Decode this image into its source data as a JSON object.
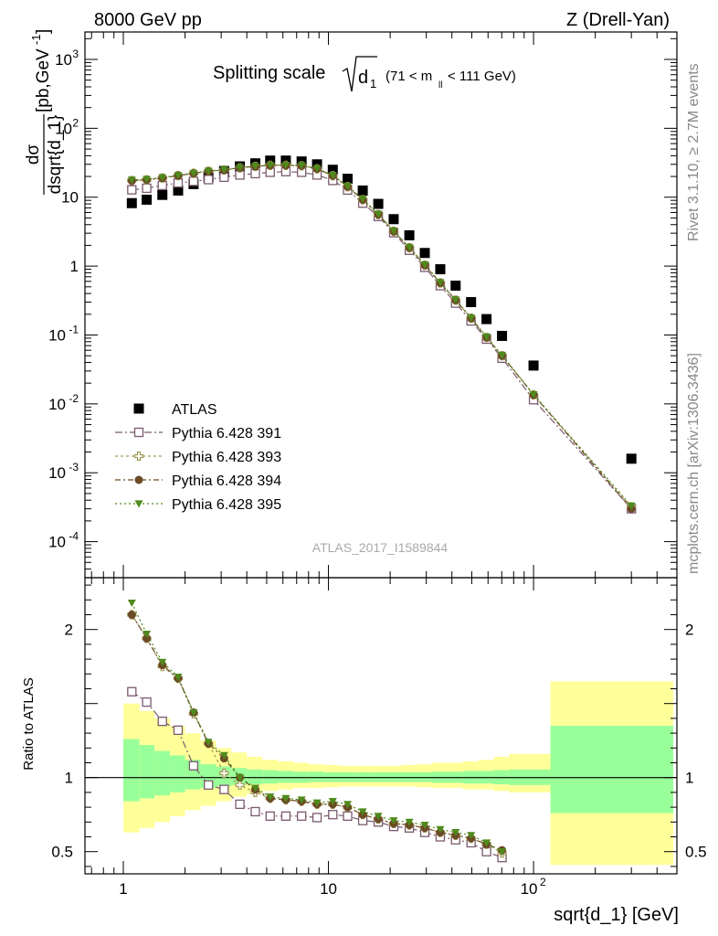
{
  "header": {
    "left": "8000 GeV pp",
    "right": "Z (Drell-Yan)"
  },
  "side_labels": {
    "rivet": "Rivet 3.1.10, ≥ 2.7M events",
    "mcplots": "mcplots.cern.ch [arXiv:1306.3436]"
  },
  "plot_title": {
    "main": "Splitting scale",
    "root_symbol": "d",
    "root_sub": "1",
    "range_a": "(71 < m",
    "range_sub": "ll",
    "range_b": " < 111 GeV)"
  },
  "analysis_id": "ATLAS_2017_I1589844",
  "y_label_top": {
    "num": "dσ",
    "den": "dsqrt{d_1}",
    "unit": "[pb,GeV",
    "unit_sup": "-1",
    "unit_close": "]"
  },
  "y_label_bottom": "Ratio to ATLAS",
  "x_label": "sqrt{d_1} [GeV]",
  "colors": {
    "data": "#000000",
    "p391": "#7a5a6e",
    "p393": "#a39a57",
    "p394": "#6b4a25",
    "p395": "#4f8a1c",
    "band_inner": "#99ff99",
    "band_outer": "#ffff99"
  },
  "chart_data": [
    {
      "type": "scatter",
      "panel": "main",
      "xscale": "log",
      "yscale": "log",
      "xlim": [
        0.65,
        500
      ],
      "ylim": [
        3e-05,
        2500
      ],
      "x_ticks": [
        "1",
        "10",
        "10^2"
      ],
      "y_ticks": [
        "10^-4",
        "10^-3",
        "10^-2",
        "10^-1",
        "1",
        "10",
        "10^2",
        "10^3"
      ],
      "x": [
        1.1,
        1.3,
        1.55,
        1.85,
        2.2,
        2.6,
        3.1,
        3.7,
        4.4,
        5.2,
        6.2,
        7.4,
        8.8,
        10.5,
        12.4,
        14.7,
        17.5,
        20.8,
        24.8,
        29.5,
        35.1,
        41.7,
        49.6,
        59,
        70.2,
        100,
        300
      ],
      "series": [
        {
          "name": "ATLAS",
          "marker": "square-filled",
          "values": [
            8.2,
            9.2,
            10.8,
            12.5,
            15.5,
            19.5,
            24,
            28,
            31,
            34,
            34,
            33,
            30,
            25,
            18.5,
            12.5,
            8,
            4.8,
            2.8,
            1.55,
            0.9,
            0.52,
            0.3,
            0.17,
            0.097,
            0.036,
            0.0016
          ]
        },
        {
          "name": "Pythia 6.428 391",
          "marker": "square-open",
          "values": [
            12.8,
            13.5,
            14.8,
            16.1,
            17,
            18,
            19.5,
            21,
            22,
            23,
            23.5,
            23,
            21,
            17.5,
            12.7,
            8.2,
            5.25,
            3.05,
            1.7,
            0.96,
            0.52,
            0.29,
            0.16,
            0.087,
            0.046,
            0.0115,
            0.0003
          ]
        },
        {
          "name": "Pythia 6.428 393",
          "marker": "cross-open",
          "values": [
            17.5,
            17.9,
            19,
            20.6,
            22.2,
            23.8,
            24.8,
            26.7,
            28,
            29,
            29,
            28.6,
            25.8,
            20.5,
            14.2,
            9.2,
            5.6,
            3.2,
            1.85,
            1.03,
            0.57,
            0.32,
            0.175,
            0.092,
            0.05,
            0.0135,
            0.00032
          ]
        },
        {
          "name": "Pythia 6.428 394",
          "marker": "circle-filled",
          "values": [
            17.3,
            17.9,
            19,
            20.6,
            22.2,
            23.8,
            24.8,
            26.7,
            28,
            29,
            29,
            28.6,
            25.8,
            20.5,
            14.2,
            9.2,
            5.6,
            3.2,
            1.85,
            1.03,
            0.57,
            0.32,
            0.175,
            0.092,
            0.05,
            0.0135,
            0.0003
          ]
        },
        {
          "name": "Pythia 6.428 395",
          "marker": "triangle-down-filled",
          "values": [
            17.8,
            18.2,
            19.3,
            20.8,
            22.4,
            24.1,
            25,
            27,
            28.3,
            29.3,
            29.3,
            29,
            26.2,
            20.8,
            14.5,
            9.4,
            5.7,
            3.25,
            1.88,
            1.05,
            0.58,
            0.325,
            0.178,
            0.094,
            0.051,
            0.0137,
            0.00033
          ]
        }
      ]
    },
    {
      "type": "scatter",
      "panel": "ratio",
      "xscale": "log",
      "xlim": [
        0.65,
        500
      ],
      "ylim": [
        0.35,
        2.35
      ],
      "y_ticks": [
        "0.5",
        "1",
        "2"
      ],
      "reference": 1,
      "band_x_edges": [
        1.0,
        1.2,
        1.42,
        1.69,
        2.0,
        2.38,
        2.83,
        3.36,
        4.0,
        4.76,
        5.66,
        6.73,
        8.0,
        9.51,
        11.3,
        13.5,
        16.0,
        19.0,
        22.6,
        26.9,
        32.0,
        38.1,
        45.3,
        53.8,
        64.0,
        76.1,
        121.0,
        480.0
      ],
      "band_inner_lo": [
        0.84,
        0.86,
        0.88,
        0.9,
        0.92,
        0.93,
        0.94,
        0.95,
        0.955,
        0.96,
        0.965,
        0.965,
        0.97,
        0.97,
        0.97,
        0.97,
        0.97,
        0.97,
        0.97,
        0.97,
        0.965,
        0.965,
        0.96,
        0.96,
        0.955,
        0.95,
        0.76
      ],
      "band_inner_hi": [
        1.26,
        1.22,
        1.18,
        1.15,
        1.12,
        1.09,
        1.075,
        1.065,
        1.055,
        1.05,
        1.045,
        1.04,
        1.04,
        1.035,
        1.035,
        1.035,
        1.035,
        1.035,
        1.035,
        1.035,
        1.04,
        1.04,
        1.045,
        1.045,
        1.05,
        1.055,
        1.35
      ],
      "band_outer_lo": [
        0.63,
        0.66,
        0.7,
        0.74,
        0.78,
        0.81,
        0.84,
        0.87,
        0.89,
        0.91,
        0.92,
        0.93,
        0.93,
        0.935,
        0.94,
        0.94,
        0.94,
        0.94,
        0.94,
        0.935,
        0.93,
        0.93,
        0.92,
        0.92,
        0.91,
        0.9,
        0.41
      ],
      "band_outer_hi": [
        1.5,
        1.45,
        1.4,
        1.35,
        1.3,
        1.25,
        1.2,
        1.17,
        1.14,
        1.12,
        1.11,
        1.1,
        1.09,
        1.085,
        1.08,
        1.08,
        1.08,
        1.08,
        1.085,
        1.09,
        1.1,
        1.1,
        1.11,
        1.12,
        1.14,
        1.16,
        1.65
      ],
      "x": [
        1.1,
        1.3,
        1.55,
        1.85,
        2.2,
        2.6,
        3.1,
        3.7,
        4.4,
        5.2,
        6.2,
        7.4,
        8.8,
        10.5,
        12.4,
        14.7,
        17.5,
        20.8,
        24.8,
        29.5,
        35.1,
        41.7,
        49.6,
        59,
        70.2
      ],
      "series": [
        {
          "name": "Pythia 6.428 391",
          "values": [
            1.58,
            1.51,
            1.38,
            1.32,
            1.08,
            0.95,
            0.92,
            0.82,
            0.77,
            0.74,
            0.74,
            0.74,
            0.73,
            0.75,
            0.74,
            0.71,
            0.7,
            0.67,
            0.66,
            0.63,
            0.6,
            0.58,
            0.56,
            0.5,
            0.46
          ]
        },
        {
          "name": "Pythia 6.428 393",
          "values": [
            2.1,
            1.94,
            1.75,
            1.67,
            1.43,
            1.23,
            1.03,
            0.95,
            0.9,
            0.86,
            0.85,
            0.84,
            0.82,
            0.82,
            0.8,
            0.75,
            0.72,
            0.69,
            0.68,
            0.66,
            0.63,
            0.61,
            0.59,
            0.55,
            0.49
          ]
        },
        {
          "name": "Pythia 6.428 394",
          "values": [
            2.1,
            1.94,
            1.76,
            1.67,
            1.44,
            1.23,
            1.13,
            1.0,
            0.92,
            0.86,
            0.85,
            0.84,
            0.82,
            0.82,
            0.8,
            0.75,
            0.72,
            0.69,
            0.68,
            0.66,
            0.63,
            0.61,
            0.59,
            0.55,
            0.51
          ]
        },
        {
          "name": "Pythia 6.428 395",
          "values": [
            2.18,
            1.97,
            1.78,
            1.68,
            1.44,
            1.24,
            1.15,
            1.0,
            0.93,
            0.87,
            0.86,
            0.85,
            0.83,
            0.84,
            0.82,
            0.77,
            0.74,
            0.71,
            0.7,
            0.68,
            0.65,
            0.63,
            0.61,
            0.56,
            0.5
          ]
        }
      ]
    }
  ]
}
